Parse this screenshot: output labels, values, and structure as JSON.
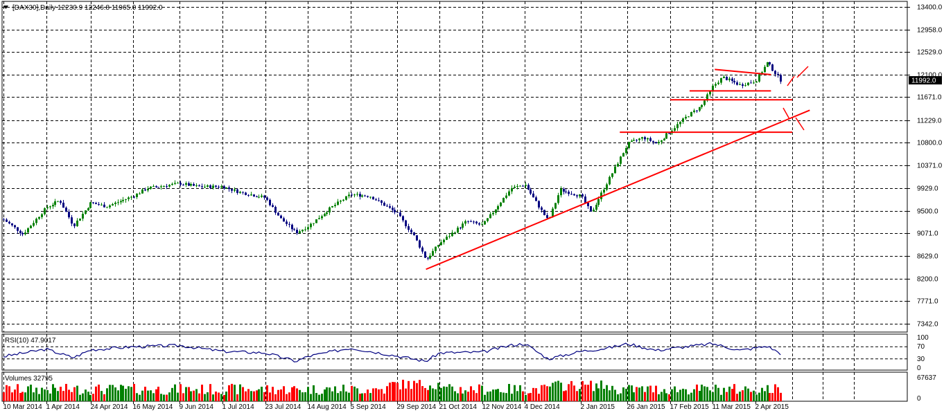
{
  "chart_data": {
    "type": "candlestick",
    "symbol_header": "[DAX30],Daily  12230.9 12246.8 11965.0 11992.0",
    "current_price_label": "11992.0",
    "price_axis": {
      "range": [
        7180,
        13500
      ],
      "ticks": [
        "13400.0",
        "12958.0",
        "12529.0",
        "12100.0",
        "11671.0",
        "11229.0",
        "10800.0",
        "10371.0",
        "9929.0",
        "9500.0",
        "9071.0",
        "8629.0",
        "8200.0",
        "7771.0",
        "7342.0"
      ]
    },
    "date_labels": [
      "10 Mar 2014",
      "1 Apr 2014",
      "24 Apr 2014",
      "16 May 2014",
      "9 Jun 2014",
      "1 Jul 2014",
      "23 Jul 2014",
      "14 Aug 2014",
      "5 Sep 2014",
      "29 Sep 2014",
      "21 Oct 2014",
      "12 Nov 2014",
      "4 Dec 2014",
      "2 Jan 2015",
      "26 Jan 2015",
      "17 Feb 2015",
      "11 Mar 2015",
      "2 Apr 2015"
    ],
    "series": [
      {
        "name": "DAX30",
        "color": "#008000",
        "down_color": "#000080",
        "close_path": [
          [
            "10 Mar 2014",
            9330
          ],
          [
            "20 Mar 2014",
            9050
          ],
          [
            "1 Apr 2014",
            9560
          ],
          [
            "8 Apr 2014",
            9700
          ],
          [
            "15 Apr 2014",
            9210
          ],
          [
            "24 Apr 2014",
            9650
          ],
          [
            "2 May 2014",
            9580
          ],
          [
            "16 May 2014",
            9780
          ],
          [
            "23 May 2014",
            9930
          ],
          [
            "9 Jun 2014",
            10020
          ],
          [
            "18 Jun 2014",
            9960
          ],
          [
            "1 Jul 2014",
            9960
          ],
          [
            "10 Jul 2014",
            9850
          ],
          [
            "23 Jul 2014",
            9750
          ],
          [
            "31 Jul 2014",
            9340
          ],
          [
            "8 Aug 2014",
            9080
          ],
          [
            "14 Aug 2014",
            9200
          ],
          [
            "26 Aug 2014",
            9560
          ],
          [
            "5 Sep 2014",
            9810
          ],
          [
            "15 Sep 2014",
            9780
          ],
          [
            "29 Sep 2014",
            9450
          ],
          [
            "8 Oct 2014",
            9000
          ],
          [
            "14 Oct 2014",
            8560
          ],
          [
            "21 Oct 2014",
            8880
          ],
          [
            "4 Nov 2014",
            9300
          ],
          [
            "12 Nov 2014",
            9220
          ],
          [
            "19 Nov 2014",
            9550
          ],
          [
            "27 Nov 2014",
            9930
          ],
          [
            "4 Dec 2014",
            10000
          ],
          [
            "10 Dec 2014",
            9650
          ],
          [
            "16 Dec 2014",
            9300
          ],
          [
            "22 Dec 2014",
            9900
          ],
          [
            "2 Jan 2015",
            9780
          ],
          [
            "7 Jan 2015",
            9450
          ],
          [
            "16 Jan 2015",
            10080
          ],
          [
            "26 Jan 2015",
            10780
          ],
          [
            "3 Feb 2015",
            10900
          ],
          [
            "10 Feb 2015",
            10780
          ],
          [
            "17 Feb 2015",
            11020
          ],
          [
            "26 Feb 2015",
            11320
          ],
          [
            "5 Mar 2015",
            11500
          ],
          [
            "11 Mar 2015",
            11880
          ],
          [
            "16 Mar 2015",
            12050
          ],
          [
            "25 Mar 2015",
            11900
          ],
          [
            "2 Apr 2015",
            11980
          ],
          [
            "8 Apr 2015",
            12330
          ],
          [
            "15 Apr 2015",
            11992
          ]
        ]
      }
    ],
    "annotations": [
      {
        "kind": "trendline",
        "color": "#ff0000",
        "from": [
          "14 Oct 2014",
          8380
        ],
        "to": [
          "30 Apr 2015",
          11420
        ]
      },
      {
        "kind": "horizontal",
        "color": "#ff0000",
        "price": 11000,
        "from": "22 Jan 2015",
        "to": "21 Apr 2015"
      },
      {
        "kind": "horizontal",
        "color": "#ff0000",
        "price": 11620,
        "from": "17 Feb 2015",
        "to": "21 Apr 2015"
      },
      {
        "kind": "horizontal",
        "color": "#ff0000",
        "price": 11790,
        "from": "27 Feb 2015",
        "to": "10 Apr 2015"
      },
      {
        "kind": "line",
        "color": "#ff0000",
        "from": [
          "12 Mar 2015",
          12200
        ],
        "to": [
          "10 Apr 2015",
          12100
        ]
      }
    ],
    "rsi": {
      "label": "RSI(10) 47.9017",
      "ticks": [
        "100",
        "70",
        "30",
        "0"
      ],
      "path": [
        [
          "10 Mar 2014",
          38
        ],
        [
          "1 Apr 2014",
          62
        ],
        [
          "15 Apr 2014",
          34
        ],
        [
          "24 Apr 2014",
          60
        ],
        [
          "16 May 2014",
          70
        ],
        [
          "9 Jun 2014",
          74
        ],
        [
          "1 Jul 2014",
          55
        ],
        [
          "23 Jul 2014",
          50
        ],
        [
          "8 Aug 2014",
          22
        ],
        [
          "14 Aug 2014",
          38
        ],
        [
          "5 Sep 2014",
          66
        ],
        [
          "29 Sep 2014",
          40
        ],
        [
          "14 Oct 2014",
          22
        ],
        [
          "21 Oct 2014",
          50
        ],
        [
          "12 Nov 2014",
          52
        ],
        [
          "27 Nov 2014",
          75
        ],
        [
          "4 Dec 2014",
          80
        ],
        [
          "16 Dec 2014",
          30
        ],
        [
          "2 Jan 2015",
          55
        ],
        [
          "16 Jan 2015",
          66
        ],
        [
          "26 Jan 2015",
          80
        ],
        [
          "10 Feb 2015",
          58
        ],
        [
          "17 Feb 2015",
          64
        ],
        [
          "11 Mar 2015",
          80
        ],
        [
          "25 Mar 2015",
          58
        ],
        [
          "8 Apr 2015",
          72
        ],
        [
          "15 Apr 2015",
          47.9
        ]
      ]
    },
    "volumes": {
      "label": "Volumes 32795",
      "ticks": [
        "67637",
        "0"
      ],
      "max": 67637,
      "colors": {
        "up": "#008000",
        "down": "#ff0000"
      }
    }
  }
}
